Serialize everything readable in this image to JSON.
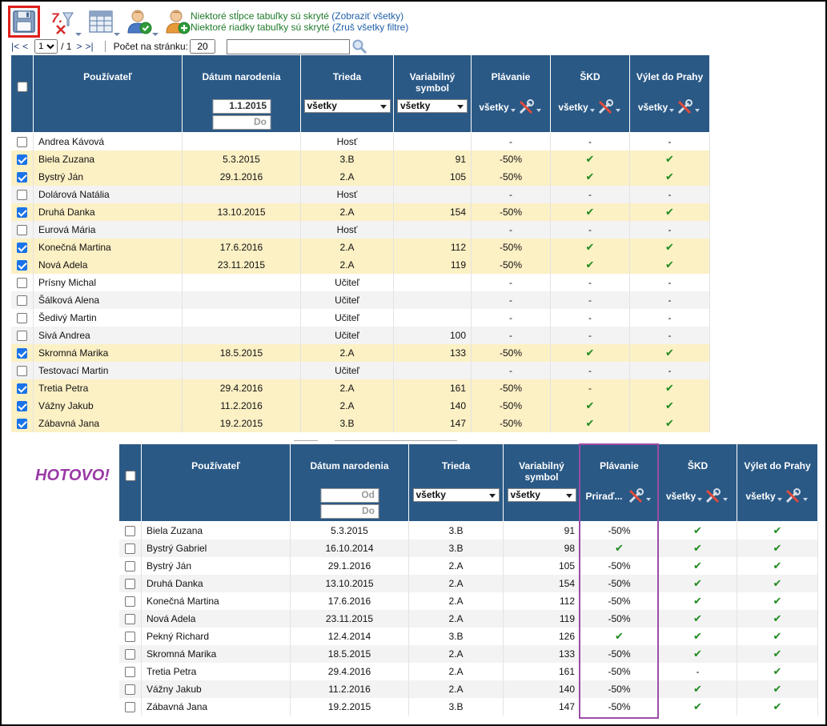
{
  "toolbar": {
    "notice_columns": "Niektoré stĺpce tabuľky sú skryté",
    "notice_columns_link": "(Zobraziť všetky)",
    "notice_rows": "Niektoré riadky tabuľky sú skryté",
    "notice_rows_link": "(Zruš všetky filtre)",
    "icons": [
      "save-icon",
      "clear-filter-icon",
      "columns-icon",
      "user-approve-icon",
      "user-add-icon"
    ]
  },
  "pager": {
    "first": "|<",
    "prev": "<",
    "page_value": "1",
    "of_total": "/ 1",
    "next": ">",
    "last": ">|",
    "per_page_label": "Počet na stránku:",
    "per_page_value": "20",
    "search_value": ""
  },
  "headers": {
    "user": "Používateľ",
    "dob": "Dátum narodenia",
    "class": "Trieda",
    "var_symbol_1": "Variabilný",
    "var_symbol_2": "symbol",
    "swim": "Plávanie",
    "skd": "ŠKD",
    "trip": "Výlet do Prahy"
  },
  "table1_filters": {
    "dob_from": "1.1.2015",
    "dob_to_placeholder": "Do",
    "class_select": "všetky",
    "var_select": "všetky",
    "swim_filter": "všetky",
    "skd_filter": "všetky",
    "trip_filter": "všetky"
  },
  "table1_rows": [
    {
      "checked": false,
      "name": "Andrea Kávová",
      "dob": "",
      "cls": "Hosť",
      "vs": "",
      "swim": "-",
      "skd": "-",
      "trip": "-"
    },
    {
      "checked": true,
      "name": "Biela Zuzana",
      "dob": "5.3.2015",
      "cls": "3.B",
      "vs": "91",
      "swim": "-50%",
      "skd": "✔",
      "trip": "✔"
    },
    {
      "checked": true,
      "name": "Bystrý Ján",
      "dob": "29.1.2016",
      "cls": "2.A",
      "vs": "105",
      "swim": "-50%",
      "skd": "✔",
      "trip": "✔"
    },
    {
      "checked": false,
      "name": "Dolárová Natália",
      "dob": "",
      "cls": "Hosť",
      "vs": "",
      "swim": "-",
      "skd": "-",
      "trip": "-"
    },
    {
      "checked": true,
      "name": "Druhá Danka",
      "dob": "13.10.2015",
      "cls": "2.A",
      "vs": "154",
      "swim": "-50%",
      "skd": "✔",
      "trip": "✔"
    },
    {
      "checked": false,
      "name": "Eurová Mária",
      "dob": "",
      "cls": "Hosť",
      "vs": "",
      "swim": "-",
      "skd": "-",
      "trip": "-"
    },
    {
      "checked": true,
      "name": "Konečná Martina",
      "dob": "17.6.2016",
      "cls": "2.A",
      "vs": "112",
      "swim": "-50%",
      "skd": "✔",
      "trip": "✔"
    },
    {
      "checked": true,
      "name": "Nová Adela",
      "dob": "23.11.2015",
      "cls": "2.A",
      "vs": "119",
      "swim": "-50%",
      "skd": "✔",
      "trip": "✔"
    },
    {
      "checked": false,
      "name": "Prísny Michal",
      "dob": "",
      "cls": "Učiteľ",
      "vs": "",
      "swim": "-",
      "skd": "-",
      "trip": "-"
    },
    {
      "checked": false,
      "name": "Šálková Alena",
      "dob": "",
      "cls": "Učiteľ",
      "vs": "",
      "swim": "-",
      "skd": "-",
      "trip": "-"
    },
    {
      "checked": false,
      "name": "Šedivý Martin",
      "dob": "",
      "cls": "Učiteľ",
      "vs": "",
      "swim": "-",
      "skd": "-",
      "trip": "-"
    },
    {
      "checked": false,
      "name": "Sivá Andrea",
      "dob": "",
      "cls": "Učiteľ",
      "vs": "100",
      "swim": "-",
      "skd": "-",
      "trip": "-"
    },
    {
      "checked": true,
      "name": "Skromná Marika",
      "dob": "18.5.2015",
      "cls": "2.A",
      "vs": "133",
      "swim": "-50%",
      "skd": "✔",
      "trip": "✔"
    },
    {
      "checked": false,
      "name": "Testovací Martin",
      "dob": "",
      "cls": "Učiteľ",
      "vs": "",
      "swim": "-",
      "skd": "-",
      "trip": "-"
    },
    {
      "checked": true,
      "name": "Tretia Petra",
      "dob": "29.4.2016",
      "cls": "2.A",
      "vs": "161",
      "swim": "-50%",
      "skd": "-",
      "trip": "✔"
    },
    {
      "checked": true,
      "name": "Vážny Jakub",
      "dob": "11.2.2016",
      "cls": "2.A",
      "vs": "140",
      "swim": "-50%",
      "skd": "✔",
      "trip": "✔"
    },
    {
      "checked": true,
      "name": "Zábavná Jana",
      "dob": "19.2.2015",
      "cls": "3.B",
      "vs": "147",
      "swim": "-50%",
      "skd": "✔",
      "trip": "✔"
    }
  ],
  "hotovo": "HOTOVO!",
  "table2_filters": {
    "dob_from_placeholder": "Od",
    "dob_to_placeholder": "Do",
    "class_select": "všetky",
    "var_select": "všetky",
    "swim_filter": "Priraď...",
    "skd_filter": "všetky",
    "trip_filter": "všetky"
  },
  "table2_rows": [
    {
      "checked": false,
      "name": "Biela Zuzana",
      "dob": "5.3.2015",
      "cls": "3.B",
      "vs": "91",
      "swim": "-50%",
      "skd": "✔",
      "trip": "✔"
    },
    {
      "checked": false,
      "name": "Bystrý Gabriel",
      "dob": "16.10.2014",
      "cls": "3.B",
      "vs": "98",
      "swim": "✔",
      "skd": "✔",
      "trip": "✔"
    },
    {
      "checked": false,
      "name": "Bystrý Ján",
      "dob": "29.1.2016",
      "cls": "2.A",
      "vs": "105",
      "swim": "-50%",
      "skd": "✔",
      "trip": "✔"
    },
    {
      "checked": false,
      "name": "Druhá Danka",
      "dob": "13.10.2015",
      "cls": "2.A",
      "vs": "154",
      "swim": "-50%",
      "skd": "✔",
      "trip": "✔"
    },
    {
      "checked": false,
      "name": "Konečná Martina",
      "dob": "17.6.2016",
      "cls": "2.A",
      "vs": "112",
      "swim": "-50%",
      "skd": "✔",
      "trip": "✔"
    },
    {
      "checked": false,
      "name": "Nová Adela",
      "dob": "23.11.2015",
      "cls": "2.A",
      "vs": "119",
      "swim": "-50%",
      "skd": "✔",
      "trip": "✔"
    },
    {
      "checked": false,
      "name": "Pekný Richard",
      "dob": "12.4.2014",
      "cls": "3.B",
      "vs": "126",
      "swim": "✔",
      "skd": "✔",
      "trip": "✔"
    },
    {
      "checked": false,
      "name": "Skromná Marika",
      "dob": "18.5.2015",
      "cls": "2.A",
      "vs": "133",
      "swim": "-50%",
      "skd": "✔",
      "trip": "✔"
    },
    {
      "checked": false,
      "name": "Tretia Petra",
      "dob": "29.4.2016",
      "cls": "2.A",
      "vs": "161",
      "swim": "-50%",
      "skd": "-",
      "trip": "✔"
    },
    {
      "checked": false,
      "name": "Vážny Jakub",
      "dob": "11.2.2016",
      "cls": "2.A",
      "vs": "140",
      "swim": "-50%",
      "skd": "✔",
      "trip": "✔"
    },
    {
      "checked": false,
      "name": "Zábavná Jana",
      "dob": "19.2.2015",
      "cls": "3.B",
      "vs": "147",
      "swim": "-50%",
      "skd": "✔",
      "trip": "✔"
    }
  ],
  "colors": {
    "header_bg": "#2a5986",
    "selected_row": "#fcf0c5",
    "check_green": "#1e8a1e",
    "highlight": "#9b4ca8",
    "hotovo": "#9a3aa6"
  }
}
